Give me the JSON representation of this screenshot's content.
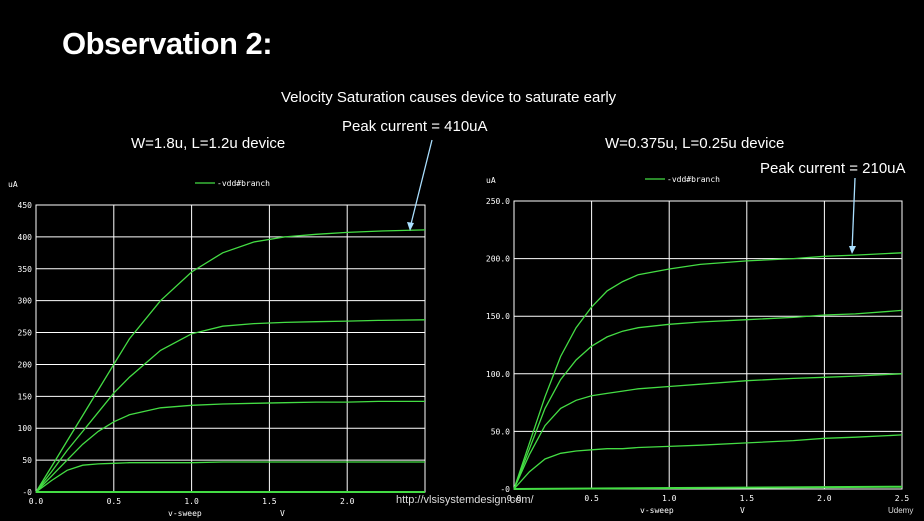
{
  "slide": {
    "title": "Observation 2:",
    "subtitle": "Velocity Saturation causes device to saturate early",
    "left_device": "W=1.8u, L=1.2u device",
    "left_peak": "Peak current = 410uA",
    "right_device": "W=0.375u, L=0.25u device",
    "right_peak": "Peak current = 210uA",
    "url": "http://vlsisystemdesign.com/",
    "logo_text": "Udemy"
  },
  "colors": {
    "background": "#000000",
    "trace": "#44dd44",
    "grid": "#ffffff",
    "axis_text": "#ffffff",
    "annotation_arrow": "#aadfff"
  },
  "chart_data": [
    {
      "type": "line",
      "unit_label": "uA",
      "legend": "-vdd#branch",
      "xlabel": "v-sweep",
      "xunit": "V",
      "xlim": [
        0,
        2.5
      ],
      "ylim": [
        0,
        450
      ],
      "x_ticks": [
        "0.0",
        "0.5",
        "1.0",
        "1.5",
        "2.0"
      ],
      "y_ticks": [
        "0",
        "50",
        "100",
        "150",
        "200",
        "250",
        "300",
        "350",
        "400",
        "450"
      ],
      "grid": true,
      "series": [
        {
          "x": [
            0,
            0.1,
            0.2,
            0.3,
            0.4,
            0.5,
            0.6,
            0.8,
            1.0,
            1.2,
            1.4,
            1.6,
            1.8,
            2.0,
            2.2,
            2.5
          ],
          "y": [
            0,
            40,
            80,
            120,
            160,
            200,
            240,
            300,
            345,
            375,
            392,
            400,
            404,
            407,
            409,
            411
          ]
        },
        {
          "x": [
            0,
            0.1,
            0.2,
            0.3,
            0.4,
            0.5,
            0.6,
            0.8,
            1.0,
            1.2,
            1.4,
            1.6,
            1.8,
            2.0,
            2.2,
            2.5
          ],
          "y": [
            0,
            32,
            65,
            95,
            125,
            155,
            180,
            222,
            248,
            260,
            264,
            266,
            267,
            268,
            269,
            270
          ]
        },
        {
          "x": [
            0,
            0.1,
            0.2,
            0.3,
            0.4,
            0.5,
            0.6,
            0.8,
            1.0,
            1.2,
            1.4,
            1.6,
            1.8,
            2.0,
            2.2,
            2.5
          ],
          "y": [
            0,
            25,
            50,
            75,
            95,
            110,
            121,
            132,
            136,
            138,
            139,
            140,
            141,
            141,
            142,
            142
          ]
        },
        {
          "x": [
            0,
            0.1,
            0.2,
            0.3,
            0.4,
            0.5,
            0.6,
            0.8,
            1.0,
            1.2,
            1.4,
            1.6,
            1.8,
            2.0,
            2.2,
            2.5
          ],
          "y": [
            0,
            18,
            34,
            42,
            44,
            45,
            46,
            46,
            46,
            47,
            47,
            47,
            47,
            47,
            47,
            47
          ]
        },
        {
          "x": [
            0,
            2.5
          ],
          "y": [
            0,
            0
          ]
        }
      ]
    },
    {
      "type": "line",
      "unit_label": "uA",
      "legend": "-vdd#branch",
      "xlabel": "v-sweep",
      "xunit": "V",
      "xlim": [
        0,
        2.5
      ],
      "ylim": [
        0,
        250
      ],
      "x_ticks": [
        "0.0",
        "0.5",
        "1.0",
        "1.5",
        "2.0",
        "2.5"
      ],
      "y_ticks": [
        "0",
        "50.0",
        "100.0",
        "150.0",
        "200.0",
        "250.0"
      ],
      "grid": true,
      "series": [
        {
          "x": [
            0,
            0.1,
            0.2,
            0.3,
            0.4,
            0.5,
            0.6,
            0.7,
            0.8,
            1.0,
            1.2,
            1.5,
            1.8,
            2.0,
            2.2,
            2.5
          ],
          "y": [
            0,
            40,
            80,
            115,
            140,
            158,
            172,
            180,
            186,
            191,
            195,
            198,
            200,
            202,
            203,
            205
          ]
        },
        {
          "x": [
            0,
            0.1,
            0.2,
            0.3,
            0.4,
            0.5,
            0.6,
            0.7,
            0.8,
            1.0,
            1.2,
            1.5,
            1.8,
            2.0,
            2.2,
            2.5
          ],
          "y": [
            0,
            35,
            70,
            95,
            112,
            124,
            132,
            137,
            140,
            143,
            145,
            147,
            149,
            151,
            152,
            155
          ]
        },
        {
          "x": [
            0,
            0.1,
            0.2,
            0.3,
            0.4,
            0.5,
            0.6,
            0.7,
            0.8,
            1.0,
            1.2,
            1.5,
            1.8,
            2.0,
            2.2,
            2.5
          ],
          "y": [
            0,
            30,
            55,
            70,
            77,
            81,
            83,
            85,
            87,
            89,
            91,
            94,
            96,
            97,
            98,
            100
          ]
        },
        {
          "x": [
            0,
            0.1,
            0.2,
            0.3,
            0.4,
            0.5,
            0.6,
            0.7,
            0.8,
            1.0,
            1.2,
            1.5,
            1.8,
            2.0,
            2.2,
            2.5
          ],
          "y": [
            0,
            15,
            26,
            31,
            33,
            34,
            35,
            35,
            36,
            37,
            38,
            40,
            42,
            44,
            45,
            47
          ]
        },
        {
          "x": [
            0,
            2.5
          ],
          "y": [
            0,
            2
          ]
        }
      ]
    }
  ]
}
